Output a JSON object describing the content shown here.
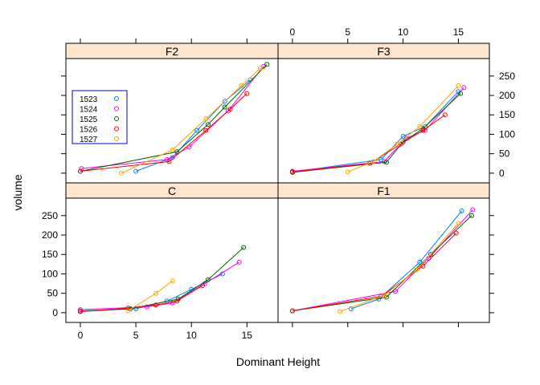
{
  "chart_data": {
    "type": "line",
    "layout": "lattice 2x2, strips on top of each panel",
    "xlabel": "Dominant Height",
    "ylabel": "volume",
    "xlim": [
      -1.3,
      17.8
    ],
    "ylim": [
      -25,
      295
    ],
    "x_ticks": [
      0,
      5,
      10,
      15
    ],
    "y_ticks": [
      0,
      50,
      100,
      150,
      200,
      250
    ],
    "strip_color": "#ffe5cc",
    "legend": {
      "placement": "inside top-left of panel F2",
      "entries": [
        {
          "label": "1523",
          "color": "#0080ff"
        },
        {
          "label": "1524",
          "color": "#ff00ff"
        },
        {
          "label": "1525",
          "color": "#006400"
        },
        {
          "label": "1526",
          "color": "#ff0000"
        },
        {
          "label": "1527",
          "color": "#ffa500"
        }
      ]
    },
    "panels": [
      {
        "name": "F2",
        "series": [
          {
            "name": "1523",
            "color": "#0080ff",
            "x": [
              5,
              8.3,
              10.5,
              13,
              15.3
            ],
            "y": [
              5,
              40,
              110,
              185,
              240
            ]
          },
          {
            "name": "1524",
            "color": "#ff00ff",
            "x": [
              0.1,
              7.8,
              9.8,
              13.3,
              16.5
            ],
            "y": [
              12,
              35,
              67,
              160,
              275
            ]
          },
          {
            "name": "1525",
            "color": "#006400",
            "x": [
              0,
              8.7,
              11.5,
              13,
              16.8
            ],
            "y": [
              5,
              55,
              125,
              170,
              280
            ]
          },
          {
            "name": "1526",
            "color": "#ff0000",
            "x": [
              0,
              8,
              11.3,
              13.5,
              15
            ],
            "y": [
              5,
              30,
              110,
              165,
              205
            ]
          },
          {
            "name": "1527",
            "color": "#ffa500",
            "x": [
              3.7,
              8.3,
              11.3,
              14.5,
              16.2
            ],
            "y": [
              0,
              60,
              140,
              225,
              270
            ]
          }
        ]
      },
      {
        "name": "F3",
        "series": [
          {
            "name": "1523",
            "color": "#0080ff",
            "x": [
              0,
              8,
              10,
              12,
              15
            ],
            "y": [
              3,
              35,
              95,
              120,
              210
            ]
          },
          {
            "name": "1524",
            "color": "#ff00ff",
            "x": [
              0,
              8.3,
              10.3,
              12,
              15.5
            ],
            "y": [
              5,
              30,
              90,
              110,
              220
            ]
          },
          {
            "name": "1525",
            "color": "#006400",
            "x": [
              0,
              8.5,
              10,
              11.8,
              15.2
            ],
            "y": [
              2,
              28,
              80,
              115,
              205
            ]
          },
          {
            "name": "1526",
            "color": "#ff0000",
            "x": [
              0,
              7,
              9.8,
              11.8,
              13.8
            ],
            "y": [
              3,
              25,
              75,
              110,
              150
            ]
          },
          {
            "name": "1527",
            "color": "#ffa500",
            "x": [
              5,
              7.3,
              9.5,
              11.5,
              15
            ],
            "y": [
              3,
              30,
              75,
              120,
              225
            ]
          }
        ]
      },
      {
        "name": "C",
        "series": [
          {
            "name": "1523",
            "color": "#0080ff",
            "x": [
              0,
              5,
              7.8,
              10,
              12.8
            ],
            "y": [
              5,
              10,
              30,
              60,
              100
            ]
          },
          {
            "name": "1524",
            "color": "#ff00ff",
            "x": [
              0,
              6,
              8.3,
              11.2,
              14.3
            ],
            "y": [
              8,
              15,
              25,
              75,
              130
            ]
          },
          {
            "name": "1525",
            "color": "#006400",
            "x": [
              0,
              4.5,
              8.8,
              11.5,
              14.7
            ],
            "y": [
              3,
              10,
              35,
              85,
              168
            ]
          },
          {
            "name": "1526",
            "color": "#ff0000",
            "x": [
              0,
              4.3,
              6.8,
              8.7,
              11
            ],
            "y": [
              3,
              12,
              20,
              30,
              70
            ]
          },
          {
            "name": "1527",
            "color": "#ffa500",
            "x": [
              4.3,
              6.8,
              8.3
            ],
            "y": [
              5,
              50,
              82
            ]
          }
        ]
      },
      {
        "name": "F1",
        "series": [
          {
            "name": "1523",
            "color": "#0080ff",
            "x": [
              5.3,
              7.8,
              11.5,
              15.3
            ],
            "y": [
              10,
              35,
              130,
              262
            ]
          },
          {
            "name": "1524",
            "color": "#ff00ff",
            "x": [
              0,
              9.3,
              12.3,
              16.3
            ],
            "y": [
              5,
              55,
              140,
              265
            ]
          },
          {
            "name": "1525",
            "color": "#006400",
            "x": [
              0,
              8.5,
              12.5,
              16.2
            ],
            "y": [
              5,
              40,
              150,
              250
            ]
          },
          {
            "name": "1526",
            "color": "#ff0000",
            "x": [
              0,
              8,
              11.8,
              14.8
            ],
            "y": [
              5,
              42,
              120,
              205
            ]
          },
          {
            "name": "1527",
            "color": "#ffa500",
            "x": [
              4.3,
              8.3,
              11.2,
              15
            ],
            "y": [
              3,
              45,
              110,
              230
            ]
          }
        ]
      }
    ]
  }
}
